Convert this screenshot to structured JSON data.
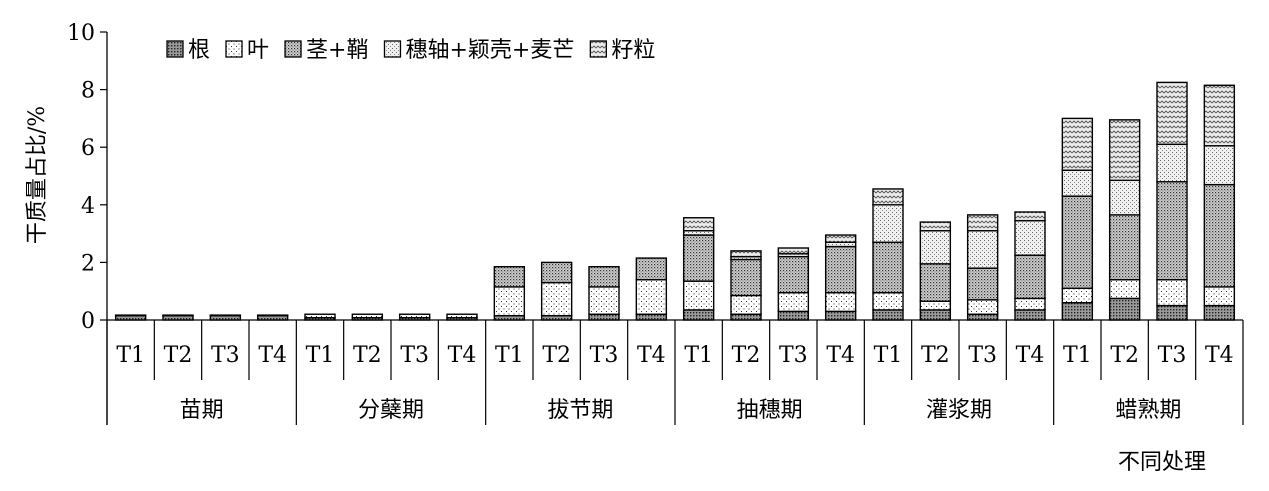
{
  "chart_data": {
    "type": "bar",
    "stacked": true,
    "ylabel": "干质量占比/%",
    "xlabel": "不同处理",
    "ylim": [
      0,
      10
    ],
    "yticks": [
      0,
      2,
      4,
      6,
      8,
      10
    ],
    "grid": false,
    "legend_position": "top-left",
    "groups": [
      "苗期",
      "分蘖期",
      "拔节期",
      "抽穗期",
      "灌浆期",
      "蜡熟期"
    ],
    "categories": [
      "T1",
      "T2",
      "T3",
      "T4",
      "T1",
      "T2",
      "T3",
      "T4",
      "T1",
      "T2",
      "T3",
      "T4",
      "T1",
      "T2",
      "T3",
      "T4",
      "T1",
      "T2",
      "T3",
      "T4",
      "T1",
      "T2",
      "T3",
      "T4"
    ],
    "series": [
      {
        "name": "根",
        "pattern": "dark-dots",
        "values": [
          0.15,
          0.15,
          0.15,
          0.15,
          0.08,
          0.08,
          0.08,
          0.08,
          0.15,
          0.15,
          0.2,
          0.2,
          0.35,
          0.2,
          0.3,
          0.3,
          0.35,
          0.35,
          0.2,
          0.35,
          0.6,
          0.75,
          0.5,
          0.5
        ]
      },
      {
        "name": "叶",
        "pattern": "fine-dots",
        "values": [
          0.02,
          0.02,
          0.02,
          0.02,
          0.12,
          0.12,
          0.12,
          0.12,
          1.0,
          1.15,
          0.95,
          1.2,
          1.0,
          0.65,
          0.65,
          0.65,
          0.6,
          0.3,
          0.5,
          0.4,
          0.5,
          0.65,
          0.9,
          0.65
        ]
      },
      {
        "name": "茎+鞘",
        "pattern": "dense-dots",
        "values": [
          0,
          0,
          0,
          0,
          0,
          0,
          0,
          0,
          0.7,
          0.7,
          0.7,
          0.75,
          1.6,
          1.25,
          1.25,
          1.6,
          1.75,
          1.3,
          1.1,
          1.5,
          3.2,
          2.25,
          3.4,
          3.55
        ]
      },
      {
        "name": "穗轴+颖壳+麦芒",
        "pattern": "light-dots",
        "values": [
          0,
          0,
          0,
          0,
          0,
          0,
          0,
          0,
          0,
          0,
          0,
          0,
          0.15,
          0.1,
          0.1,
          0.15,
          1.3,
          1.15,
          1.3,
          1.2,
          0.9,
          1.2,
          1.3,
          1.35
        ]
      },
      {
        "name": "籽粒",
        "pattern": "wave",
        "values": [
          0,
          0,
          0,
          0,
          0,
          0,
          0,
          0,
          0,
          0,
          0,
          0,
          0.45,
          0.2,
          0.2,
          0.25,
          0.55,
          0.3,
          0.55,
          0.3,
          1.8,
          2.1,
          2.15,
          2.1
        ]
      }
    ]
  }
}
